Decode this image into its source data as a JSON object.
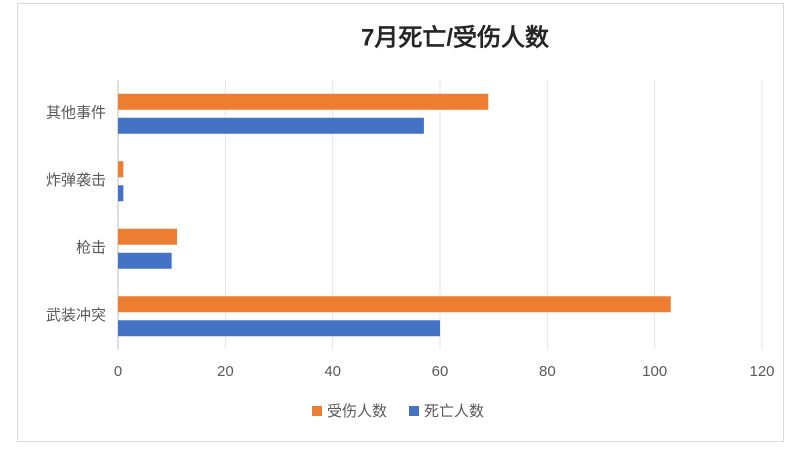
{
  "chart_data": {
    "type": "hbar",
    "title": "7月死亡/受伤人数",
    "categories": [
      "武装冲突",
      "枪击",
      "炸弹袭击",
      "其他事件"
    ],
    "series": [
      {
        "name": "受伤人数",
        "color": "#ed7d31",
        "values": [
          103,
          11,
          1,
          69
        ]
      },
      {
        "name": "死亡人数",
        "color": "#4472c4",
        "values": [
          60,
          10,
          1,
          57
        ]
      }
    ],
    "xlim": [
      0,
      120
    ],
    "xticks": [
      0,
      20,
      40,
      60,
      80,
      100,
      120
    ],
    "grid": true,
    "legend": "bottom"
  }
}
